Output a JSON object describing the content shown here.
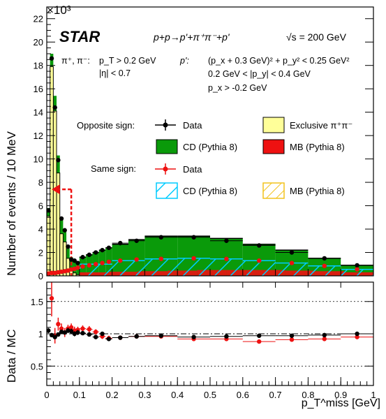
{
  "chart_data": {
    "type": "bar",
    "experiment": "STAR",
    "process": "p+p→p'+π⁺π⁻+p'",
    "energy": "√s = 200 GeV",
    "exponent_label": "×10³",
    "cuts": {
      "pion_label": "π⁺, π⁻:",
      "pion_cuts": [
        "p_T > 0.2 GeV",
        "|η| < 0.7"
      ],
      "proton_label": "p':",
      "proton_cuts": [
        "(p_x + 0.3 GeV)² + p_y² < 0.25 GeV²",
        "0.2 GeV < |p_y| < 0.4 GeV",
        "p_x > -0.2 GeV"
      ]
    },
    "legend": {
      "opposite_sign_label": "Opposite sign:",
      "same_sign_label": "Same sign:",
      "entries": [
        {
          "key": "data_os",
          "label": "Data"
        },
        {
          "key": "exclusive",
          "label": "Exclusive π⁺π⁻"
        },
        {
          "key": "cd_os",
          "label": "CD (Pythia 8)"
        },
        {
          "key": "mb_os",
          "label": "MB (Pythia 8)"
        },
        {
          "key": "data_ss",
          "label": "Data"
        },
        {
          "key": "cd_ss",
          "label": "CD (Pythia 8)"
        },
        {
          "key": "mb_ss",
          "label": "MB (Pythia 8)"
        }
      ]
    },
    "colors": {
      "exclusive": "#ffff99",
      "cd": "#0a9a0a",
      "mb": "#ee1111",
      "cd_ss": "#00ccff",
      "mb_ss": "#f2c21c",
      "data_os": "#000000",
      "data_ss": "#ee1111"
    },
    "cut_value": 0.075,
    "top": {
      "ylabel": "Number of events / 10 MeV",
      "ylim": [
        0,
        23
      ],
      "yticks": [
        0,
        2,
        4,
        6,
        8,
        10,
        12,
        14,
        16,
        18,
        20,
        22
      ],
      "fine_edges": [
        0,
        0.01,
        0.02,
        0.03,
        0.04,
        0.05,
        0.06,
        0.07,
        0.08,
        0.09,
        0.1
      ],
      "fine_exclusive": [
        5.1,
        17.9,
        14.1,
        8.8,
        3.6,
        2.9,
        1.5,
        0.6,
        0.25,
        0.1
      ],
      "fine_total": [
        5.8,
        19.0,
        15.4,
        10.3,
        5.0,
        4.0,
        2.6,
        1.6,
        1.2,
        1.1
      ],
      "fine_data_x": [
        0.005,
        0.015,
        0.025,
        0.035,
        0.045,
        0.055,
        0.065,
        0.075,
        0.085,
        0.095
      ],
      "fine_data_y": [
        5.6,
        18.6,
        14.4,
        9.9,
        4.9,
        3.9,
        2.5,
        1.4,
        1.3,
        1.1
      ],
      "coarse_edges": [
        0.1,
        0.12,
        0.14,
        0.16,
        0.18,
        0.2,
        0.25,
        0.3,
        0.4,
        0.5,
        0.6,
        0.7,
        0.8,
        0.9,
        1.0
      ],
      "coarse_cd": [
        1.5,
        1.7,
        1.9,
        2.1,
        2.3,
        2.6,
        3.0,
        3.3,
        3.3,
        3.1,
        2.6,
        2.1,
        1.4,
        0.8
      ],
      "coarse_total": [
        1.6,
        1.8,
        2.0,
        2.2,
        2.4,
        2.7,
        3.1,
        3.4,
        3.4,
        3.2,
        2.7,
        2.2,
        1.5,
        0.9
      ],
      "coarse_data_x": [
        0.11,
        0.13,
        0.15,
        0.17,
        0.19,
        0.225,
        0.275,
        0.35,
        0.45,
        0.55,
        0.65,
        0.75,
        0.85,
        0.95
      ],
      "coarse_data_y": [
        1.6,
        1.8,
        2.0,
        2.2,
        2.4,
        2.8,
        3.0,
        3.3,
        3.3,
        3.0,
        2.6,
        2.0,
        1.5,
        0.9
      ],
      "ss_data_x": [
        0.005,
        0.015,
        0.025,
        0.035,
        0.045,
        0.055,
        0.065,
        0.075,
        0.085,
        0.095,
        0.11,
        0.13,
        0.15,
        0.17,
        0.19,
        0.225,
        0.275,
        0.35,
        0.45,
        0.55,
        0.65,
        0.75,
        0.85,
        0.95
      ],
      "ss_data_y": [
        0.2,
        0.25,
        0.25,
        0.3,
        0.35,
        0.4,
        0.45,
        0.55,
        0.6,
        0.7,
        0.8,
        0.9,
        1.0,
        1.1,
        1.2,
        1.3,
        1.4,
        1.45,
        1.5,
        1.45,
        1.3,
        1.1,
        0.85,
        0.55
      ],
      "ss_cd_edges": [
        0.1,
        0.2,
        0.3,
        0.4,
        0.5,
        0.6,
        0.7,
        0.8,
        0.9,
        1.0
      ],
      "ss_cd": [
        1.0,
        1.3,
        1.45,
        1.5,
        1.45,
        1.3,
        1.1,
        0.85,
        0.55
      ],
      "mb_band": [
        0.3,
        0.35,
        0.4,
        0.45,
        0.5,
        0.5,
        0.5,
        0.45,
        0.4,
        0.3
      ]
    },
    "ratio": {
      "ylabel": "Data / MC",
      "ylim": [
        0.2,
        1.8
      ],
      "yticks": [
        0.5,
        1,
        1.5
      ],
      "xlabel": "p_T^miss [GeV]",
      "xlim": [
        0,
        1
      ],
      "xticks": [
        0,
        0.1,
        0.2,
        0.3,
        0.4,
        0.5,
        0.6,
        0.7,
        0.8,
        0.9,
        1
      ],
      "os_x": [
        0.005,
        0.015,
        0.025,
        0.035,
        0.045,
        0.055,
        0.065,
        0.075,
        0.085,
        0.095,
        0.11,
        0.13,
        0.15,
        0.17,
        0.19,
        0.225,
        0.275,
        0.35,
        0.45,
        0.55,
        0.65,
        0.75,
        0.85,
        0.95
      ],
      "os_y": [
        1.05,
        0.98,
        0.95,
        0.99,
        1.03,
        1.02,
        1.05,
        1.04,
        1.0,
        1.02,
        1.01,
        0.99,
        0.95,
        1.0,
        0.92,
        0.94,
        0.96,
        0.97,
        0.95,
        0.96,
        0.97,
        0.97,
        0.98,
        1.0
      ],
      "os_err": [
        0.04,
        0.02,
        0.02,
        0.02,
        0.03,
        0.03,
        0.04,
        0.04,
        0.04,
        0.04,
        0.03,
        0.03,
        0.03,
        0.03,
        0.03,
        0.02,
        0.02,
        0.01,
        0.01,
        0.01,
        0.02,
        0.02,
        0.02,
        0.03
      ],
      "ss_x": [
        0.015,
        0.025,
        0.035,
        0.045,
        0.055,
        0.065,
        0.075,
        0.085,
        0.095,
        0.11,
        0.13,
        0.15,
        0.17,
        0.19,
        0.225,
        0.275,
        0.35,
        0.45,
        0.55,
        0.65,
        0.75,
        0.85,
        0.95
      ],
      "ss_y": [
        1.55,
        0.97,
        1.15,
        1.08,
        1.02,
        1.08,
        1.1,
        1.05,
        1.06,
        1.08,
        1.07,
        1.03,
        0.96,
        0.93,
        0.94,
        0.96,
        0.96,
        0.92,
        0.92,
        0.88,
        0.91,
        0.92,
        0.95
      ],
      "ss_err": [
        0.28,
        0.12,
        0.1,
        0.08,
        0.07,
        0.06,
        0.06,
        0.06,
        0.05,
        0.05,
        0.05,
        0.04,
        0.04,
        0.04,
        0.03,
        0.03,
        0.02,
        0.02,
        0.02,
        0.02,
        0.02,
        0.03,
        0.03
      ]
    }
  }
}
